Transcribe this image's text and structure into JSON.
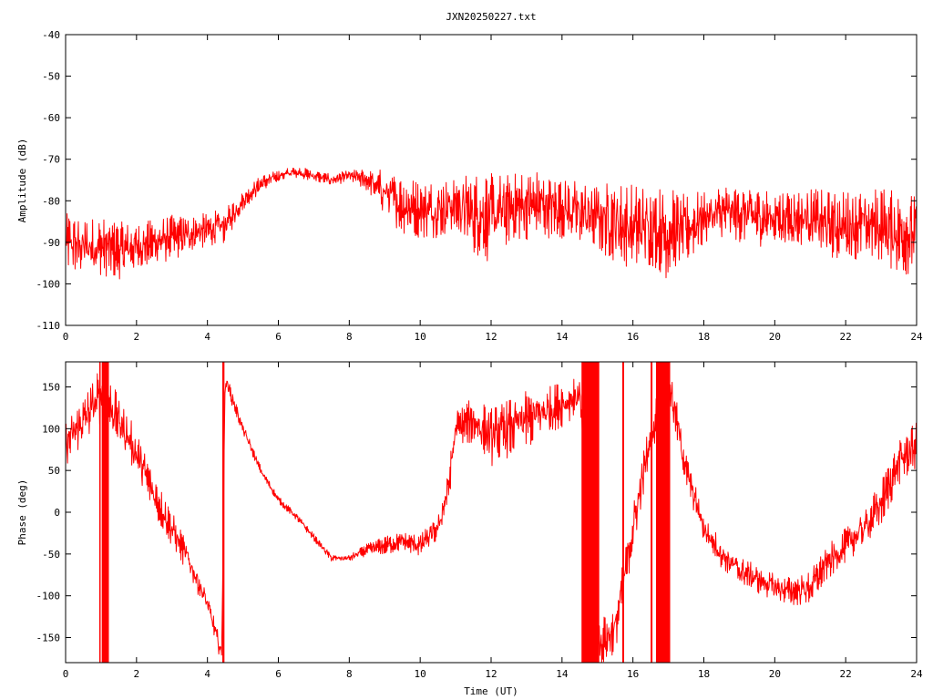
{
  "title": "JXN20250227.txt",
  "colors": {
    "series": "#ff0000",
    "axis": "#000000",
    "grid": "#a0a0a0",
    "background": "#ffffff"
  },
  "chart_data": [
    {
      "type": "line",
      "ylabel": "Amplitude (dB)",
      "xlabel": "",
      "xlim": [
        0,
        24
      ],
      "ylim": [
        -110,
        -40
      ],
      "x_ticks": [
        0,
        2,
        4,
        6,
        8,
        10,
        12,
        14,
        16,
        18,
        20,
        22,
        24
      ],
      "y_ticks": [
        -110,
        -100,
        -90,
        -80,
        -70,
        -60,
        -50,
        -40
      ],
      "grid": false,
      "series": [
        {
          "x": [
            0,
            0.5,
            1,
            1.5,
            2,
            2.5,
            3,
            3.5,
            4,
            4.5,
            5,
            5.5,
            6,
            6.5,
            7,
            7.5,
            8,
            8.5,
            9,
            9.5,
            10,
            10.5,
            11,
            11.5,
            12,
            12.5,
            13,
            13.5,
            14,
            14.5,
            15,
            15.5,
            16,
            16.5,
            17,
            17.5,
            18,
            18.5,
            19,
            19.5,
            20,
            20.5,
            21,
            21.5,
            22,
            22.5,
            23,
            23.5,
            24
          ],
          "y": [
            -90,
            -91,
            -91,
            -92,
            -91,
            -90,
            -89,
            -88,
            -87,
            -86,
            -80,
            -76,
            -74,
            -73,
            -74,
            -75,
            -74,
            -75,
            -78,
            -81,
            -82,
            -82,
            -81,
            -83,
            -84,
            -82,
            -81,
            -81,
            -82,
            -83,
            -84,
            -85,
            -87,
            -86,
            -88,
            -87,
            -84,
            -83,
            -83,
            -84,
            -84,
            -84,
            -84,
            -86,
            -86,
            -86,
            -86,
            -88,
            -88
          ],
          "noise": [
            5,
            5,
            5,
            5,
            4,
            4,
            4,
            3,
            3,
            3,
            1.5,
            1.5,
            1,
            1,
            1,
            1,
            1,
            2,
            4,
            5,
            5,
            5,
            5,
            7,
            8,
            6,
            6,
            6,
            5,
            6,
            6,
            7,
            8,
            7,
            8,
            6,
            5,
            5,
            5,
            5,
            5,
            5,
            5,
            6,
            6,
            6,
            7,
            7,
            7
          ]
        }
      ]
    },
    {
      "type": "line",
      "ylabel": "Phase (deg)",
      "xlabel": "Time (UT)",
      "xlim": [
        0,
        24
      ],
      "ylim": [
        -180,
        180
      ],
      "x_ticks": [
        0,
        2,
        4,
        6,
        8,
        10,
        12,
        14,
        16,
        18,
        20,
        22,
        24
      ],
      "y_ticks": [
        -150,
        -100,
        -50,
        0,
        50,
        100,
        150
      ],
      "grid": false,
      "series": [
        {
          "x": [
            0,
            0.5,
            1,
            1.2,
            1.5,
            2,
            2.5,
            3,
            3.5,
            4,
            4.4,
            4.5,
            5,
            5.5,
            6,
            6.5,
            7,
            7.5,
            8,
            8.5,
            9,
            9.5,
            10,
            10.5,
            10.8,
            11,
            11.5,
            12,
            12.5,
            13,
            13.5,
            14,
            14.5,
            15,
            15.5,
            16,
            16.5,
            17,
            17.5,
            18,
            18.5,
            19,
            19.5,
            20,
            20.5,
            21,
            21.5,
            22,
            22.5,
            23,
            23.5,
            24
          ],
          "y": [
            80,
            110,
            140,
            130,
            110,
            70,
            20,
            -20,
            -60,
            -110,
            -170,
            160,
            100,
            50,
            15,
            -5,
            -30,
            -55,
            -55,
            -45,
            -40,
            -35,
            -40,
            -20,
            30,
            100,
            110,
            90,
            100,
            110,
            120,
            130,
            140,
            -160,
            -140,
            -20,
            90,
            160,
            50,
            -20,
            -50,
            -70,
            -80,
            -90,
            -95,
            -90,
            -60,
            -40,
            -20,
            10,
            60,
            80
          ],
          "noise": [
            20,
            20,
            25,
            25,
            20,
            20,
            18,
            15,
            12,
            10,
            8,
            8,
            5,
            4,
            3,
            3,
            3,
            3,
            3,
            5,
            8,
            8,
            10,
            10,
            15,
            15,
            20,
            25,
            25,
            25,
            20,
            20,
            15,
            20,
            20,
            20,
            20,
            20,
            15,
            12,
            12,
            12,
            12,
            12,
            12,
            15,
            15,
            15,
            15,
            20,
            20,
            20
          ]
        }
      ],
      "wrap_bands": [
        {
          "x0": 0.95,
          "x1": 0.97
        },
        {
          "x0": 1.02,
          "x1": 1.22
        },
        {
          "x0": 4.42,
          "x1": 4.48
        },
        {
          "x0": 14.55,
          "x1": 15.05
        },
        {
          "x0": 15.7,
          "x1": 15.75
        },
        {
          "x0": 16.5,
          "x1": 16.55
        },
        {
          "x0": 16.65,
          "x1": 17.05
        }
      ]
    }
  ]
}
